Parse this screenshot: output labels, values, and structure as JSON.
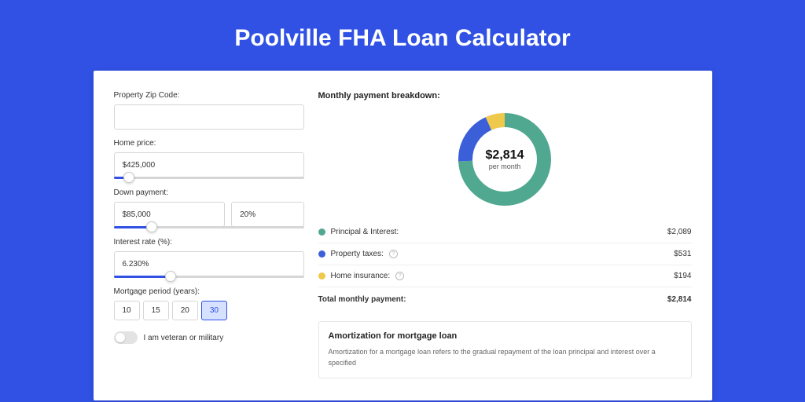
{
  "page": {
    "title": "Poolville FHA Loan Calculator",
    "background_color": "#3151e4"
  },
  "form": {
    "zip": {
      "label": "Property Zip Code:",
      "value": ""
    },
    "home_price": {
      "label": "Home price:",
      "value": "$425,000",
      "slider_pct": 8
    },
    "down_payment": {
      "label": "Down payment:",
      "value": "$85,000",
      "pct_value": "20%",
      "slider_pct": 20
    },
    "interest_rate": {
      "label": "Interest rate (%):",
      "value": "6.230%",
      "slider_pct": 30
    },
    "mortgage_period": {
      "label": "Mortgage period (years):",
      "options": [
        "10",
        "15",
        "20",
        "30"
      ],
      "selected": "30"
    },
    "veteran": {
      "label": "I am veteran or military",
      "checked": false
    }
  },
  "breakdown": {
    "title": "Monthly payment breakdown:",
    "donut": {
      "value": "$2,814",
      "sub": "per month",
      "slices": [
        {
          "key": "pi",
          "color": "#51a890",
          "pct": 74.2
        },
        {
          "key": "tax",
          "color": "#3a5fd9",
          "pct": 18.9
        },
        {
          "key": "ins",
          "color": "#efc94c",
          "pct": 6.9
        }
      ],
      "stroke_width": 18
    },
    "rows": [
      {
        "label": "Principal & Interest:",
        "color": "#51a890",
        "value": "$2,089",
        "info": false
      },
      {
        "label": "Property taxes:",
        "color": "#3a5fd9",
        "value": "$531",
        "info": true
      },
      {
        "label": "Home insurance:",
        "color": "#efc94c",
        "value": "$194",
        "info": true
      }
    ],
    "total": {
      "label": "Total monthly payment:",
      "value": "$2,814"
    }
  },
  "amortization": {
    "title": "Amortization for mortgage loan",
    "text": "Amortization for a mortgage loan refers to the gradual repayment of the loan principal and interest over a specified"
  }
}
